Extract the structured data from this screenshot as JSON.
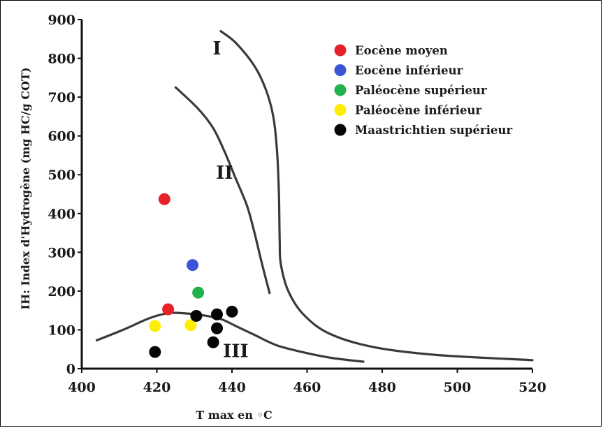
{
  "chart_data": {
    "type": "scatter",
    "xlabel": "T max en ◦C",
    "ylabel": "IH: Index d'Hydrogène (mg HC/g COT)",
    "xlim": [
      400,
      520
    ],
    "ylim": [
      0,
      900
    ],
    "x_ticks": [
      "400",
      "420",
      "440",
      "460",
      "480",
      "500",
      "520"
    ],
    "y_ticks": [
      "0",
      "100",
      "200",
      "300",
      "400",
      "500",
      "600",
      "700",
      "800",
      "900"
    ],
    "grid": false,
    "legend_position": "top-right",
    "series": [
      {
        "name": "Eocène moyen",
        "color": "#e8202a",
        "points": [
          [
            422,
            437
          ],
          [
            423,
            153
          ]
        ]
      },
      {
        "name": "Eocène inférieur",
        "color": "#3b55d6",
        "points": [
          [
            429.5,
            267
          ]
        ]
      },
      {
        "name": "Paléocène supérieur",
        "color": "#22b14c",
        "points": [
          [
            431,
            196
          ]
        ]
      },
      {
        "name": "Paléocène inférieur",
        "color": "#ffee00",
        "points": [
          [
            419.5,
            110
          ],
          [
            429,
            112
          ]
        ]
      },
      {
        "name": "Maastrichtien supérieur",
        "color": "#050505",
        "points": [
          [
            419.5,
            43
          ],
          [
            430.5,
            136
          ],
          [
            436,
            140
          ],
          [
            440,
            147
          ],
          [
            436,
            104
          ],
          [
            435,
            68
          ]
        ]
      }
    ],
    "maturation_curves": [
      {
        "label": "I",
        "points": [
          [
            437,
            870
          ],
          [
            441,
            840
          ],
          [
            446,
            780
          ],
          [
            449,
            720
          ],
          [
            451,
            650
          ],
          [
            452,
            560
          ],
          [
            452.5,
            450
          ],
          [
            452.7,
            330
          ],
          [
            453,
            270
          ],
          [
            455,
            200
          ],
          [
            459,
            140
          ],
          [
            466,
            90
          ],
          [
            478,
            55
          ],
          [
            495,
            35
          ],
          [
            520,
            22
          ]
        ]
      },
      {
        "label": "II",
        "points": [
          [
            425,
            725
          ],
          [
            431,
            670
          ],
          [
            435,
            620
          ],
          [
            438,
            560
          ],
          [
            441,
            490
          ],
          [
            444,
            420
          ],
          [
            446,
            350
          ],
          [
            448,
            270
          ],
          [
            450,
            195
          ]
        ]
      },
      {
        "label": "III",
        "points": [
          [
            404,
            73
          ],
          [
            411,
            100
          ],
          [
            418,
            130
          ],
          [
            423,
            143
          ],
          [
            427,
            143
          ],
          [
            432,
            138
          ],
          [
            437,
            128
          ],
          [
            441,
            110
          ],
          [
            446,
            87
          ],
          [
            452,
            60
          ],
          [
            460,
            40
          ],
          [
            467,
            27
          ],
          [
            475,
            18
          ]
        ]
      }
    ],
    "curve_label_positions": [
      {
        "label": "I",
        "x": 436,
        "y": 810
      },
      {
        "label": "II",
        "x": 438,
        "y": 490
      },
      {
        "label": "III",
        "x": 441,
        "y": 30
      }
    ]
  }
}
